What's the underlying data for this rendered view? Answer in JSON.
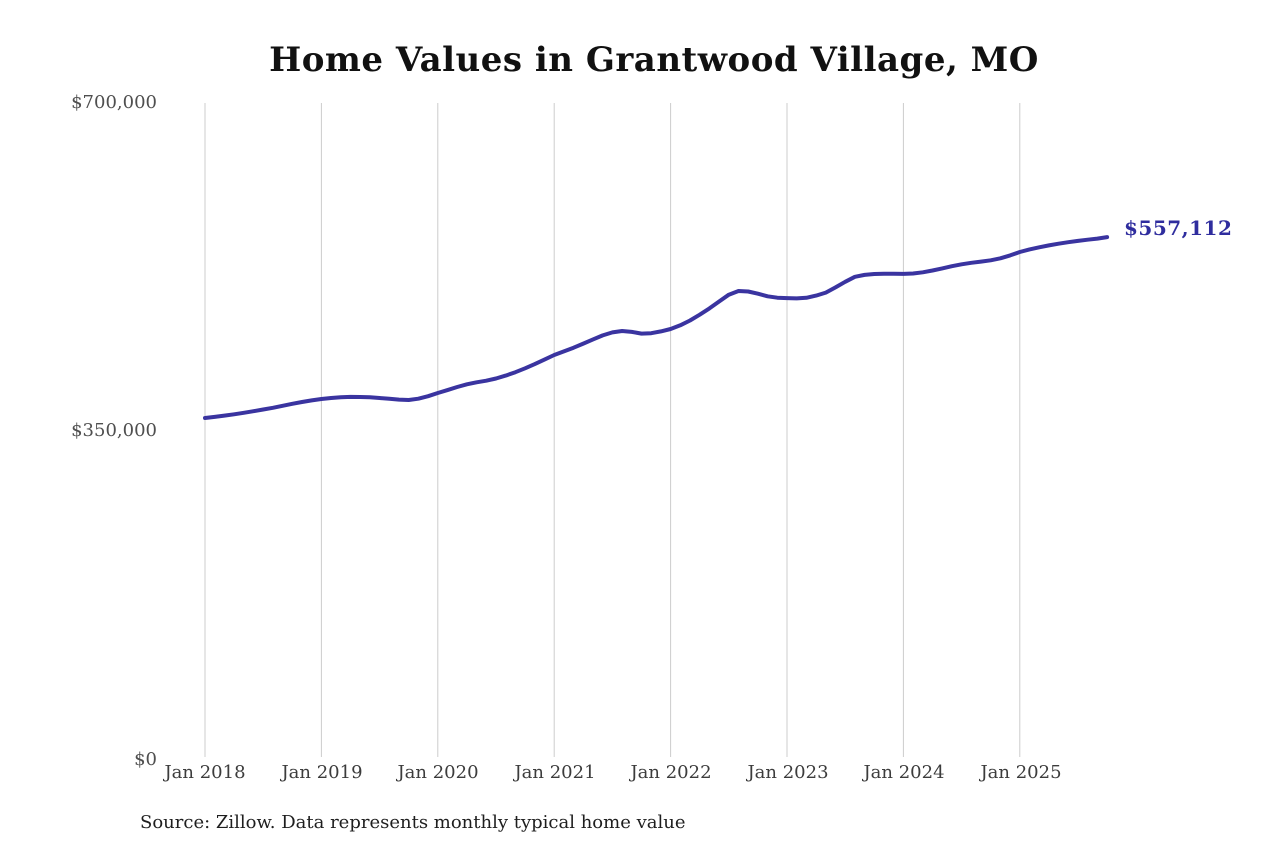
{
  "page": {
    "title": "Home Values in Grantwood Village, MO",
    "source_note": "Source: Zillow. Data represents monthly typical home value"
  },
  "chart_data": {
    "type": "line",
    "title": "Home Values in Grantwood Village, MO",
    "series_name": "Monthly typical home value",
    "frequency": "monthly",
    "x_start": "2018-01",
    "x_end": "2025-10",
    "x_tick_labels": [
      "Jan 2018",
      "Jan 2019",
      "Jan 2020",
      "Jan 2021",
      "Jan 2022",
      "Jan 2023",
      "Jan 2024",
      "Jan 2025"
    ],
    "y_tick_labels": [
      "$700,000",
      "$350,000",
      "$0"
    ],
    "y_tick_values": [
      700000,
      350000,
      0
    ],
    "ylim": [
      0,
      700000
    ],
    "grid": "vertical-only",
    "legend": "none",
    "end_label": "$557,112",
    "final_value": 557112,
    "colors": {
      "line": "#3a34a0",
      "end_label": "#2f2d9e",
      "gridline": "#cccccc",
      "title_text": "#111111",
      "axis_text": "#4f4f4f",
      "source_text": "#1e1e1e"
    },
    "values": [
      364400,
      365600,
      366900,
      368300,
      369900,
      371600,
      373400,
      375300,
      377400,
      379500,
      381400,
      383100,
      384600,
      385700,
      386500,
      386900,
      386800,
      386400,
      385700,
      384800,
      384000,
      383600,
      384900,
      387600,
      391000,
      394100,
      397400,
      400300,
      402400,
      404100,
      406500,
      409600,
      413200,
      417300,
      421800,
      426600,
      431500,
      435300,
      439300,
      443600,
      448100,
      452400,
      455600,
      457100,
      456100,
      454300,
      454700,
      456700,
      459200,
      463200,
      468300,
      474400,
      481200,
      488500,
      495800,
      499700,
      499200,
      496800,
      494000,
      492600,
      492100,
      491800,
      492400,
      494800,
      498000,
      503500,
      509500,
      514800,
      516900,
      517800,
      518100,
      518100,
      517900,
      518300,
      519600,
      521500,
      523800,
      526100,
      528100,
      529700,
      531000,
      532400,
      534500,
      537600,
      541200,
      544000,
      546300,
      548300,
      550100,
      551700,
      553100,
      554300,
      555500,
      557112
    ]
  }
}
